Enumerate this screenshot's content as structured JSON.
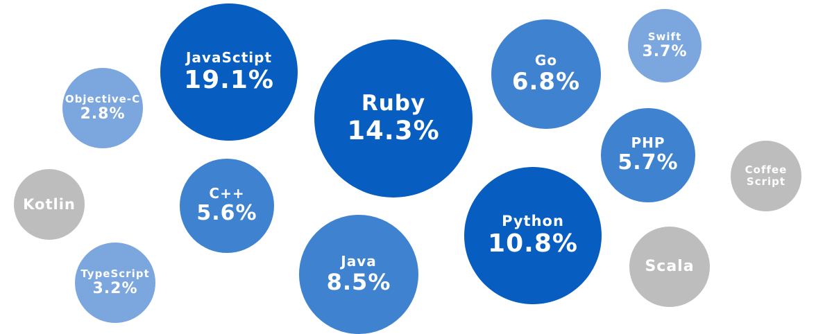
{
  "chart_data": {
    "type": "bubble",
    "colors": {
      "dark": "#075EC0",
      "medium": "#3E82D0",
      "light": "#7BA7DE",
      "gray": "#BDBDBD"
    },
    "items": [
      {
        "name": "JavaSctipt",
        "label": "19.1%",
        "value": 19.1,
        "color": "dark"
      },
      {
        "name": "Ruby",
        "label": "14.3%",
        "value": 14.3,
        "color": "dark"
      },
      {
        "name": "Python",
        "label": "10.8%",
        "value": 10.8,
        "color": "dark"
      },
      {
        "name": "Java",
        "label": "8.5%",
        "value": 8.5,
        "color": "medium"
      },
      {
        "name": "Go",
        "label": "6.8%",
        "value": 6.8,
        "color": "medium"
      },
      {
        "name": "PHP",
        "label": "5.7%",
        "value": 5.7,
        "color": "medium"
      },
      {
        "name": "C++",
        "label": "5.6%",
        "value": 5.6,
        "color": "medium"
      },
      {
        "name": "Swift",
        "label": "3.7%",
        "value": 3.7,
        "color": "light"
      },
      {
        "name": "TypeScript",
        "label": "3.2%",
        "value": 3.2,
        "color": "light"
      },
      {
        "name": "Objective-C",
        "label": "2.8%",
        "value": 2.8,
        "color": "light"
      },
      {
        "name": "Kotlin",
        "label": "",
        "value": null,
        "color": "gray"
      },
      {
        "name": "Coffee\nScript",
        "label": "",
        "value": null,
        "color": "gray"
      },
      {
        "name": "Scala",
        "label": "",
        "value": null,
        "color": "gray"
      }
    ]
  }
}
